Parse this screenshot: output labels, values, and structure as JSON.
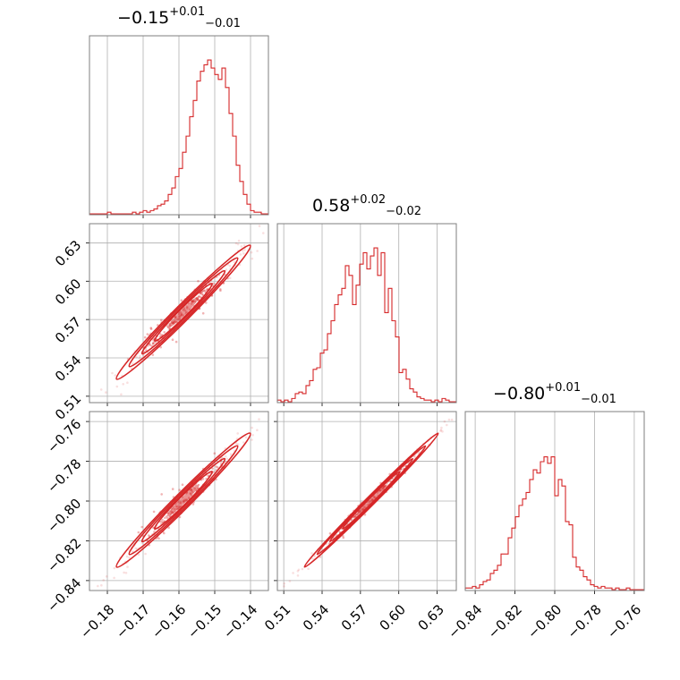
{
  "chart_data": {
    "type": "corner",
    "color": "#d62728",
    "grid": true,
    "parameters": [
      {
        "title_value": "−0.15",
        "title_plus": "+0.01",
        "title_minus": "−0.01",
        "range": [
          -0.185,
          -0.135
        ],
        "ticks": [
          -0.18,
          -0.17,
          -0.16,
          -0.15,
          -0.14
        ],
        "tick_labels": [
          "−0.18",
          "−0.17",
          "−0.16",
          "−0.15",
          "−0.14"
        ],
        "hist": [
          0,
          0,
          0,
          0,
          0,
          0.01,
          0,
          0,
          0,
          0,
          0,
          0,
          0.01,
          0,
          0.01,
          0.02,
          0.01,
          0.02,
          0.03,
          0.05,
          0.06,
          0.08,
          0.12,
          0.16,
          0.23,
          0.28,
          0.38,
          0.48,
          0.6,
          0.7,
          0.82,
          0.88,
          0.92,
          0.95,
          0.9,
          0.86,
          0.83,
          0.9,
          0.78,
          0.62,
          0.48,
          0.3,
          0.2,
          0.12,
          0.06,
          0.02,
          0.01,
          0.01,
          0,
          0
        ]
      },
      {
        "title_value": "0.58",
        "title_plus": "+0.02",
        "title_minus": "−0.02",
        "range": [
          0.505,
          0.645
        ],
        "ticks": [
          0.51,
          0.54,
          0.57,
          0.6,
          0.63
        ],
        "tick_labels": [
          "0.51",
          "0.54",
          "0.57",
          "0.60",
          "0.63"
        ],
        "hist": [
          0.01,
          0,
          0.01,
          0,
          0.02,
          0.05,
          0.06,
          0.05,
          0.1,
          0.13,
          0.2,
          0.21,
          0.3,
          0.32,
          0.42,
          0.5,
          0.6,
          0.66,
          0.7,
          0.84,
          0.78,
          0.6,
          0.72,
          0.85,
          0.92,
          0.82,
          0.9,
          0.95,
          0.78,
          0.92,
          0.55,
          0.7,
          0.5,
          0.4,
          0.18,
          0.2,
          0.14,
          0.08,
          0.06,
          0.03,
          0.02,
          0.01,
          0.01,
          0,
          0.01,
          0,
          0.02,
          0.01,
          0,
          0
        ]
      },
      {
        "title_value": "−0.80",
        "title_plus": "+0.01",
        "title_minus": "−0.01",
        "range": [
          -0.845,
          -0.755
        ],
        "ticks": [
          -0.84,
          -0.82,
          -0.8,
          -0.78,
          -0.76
        ],
        "tick_labels": [
          "−0.84",
          "−0.82",
          "−0.80",
          "−0.78",
          "−0.76"
        ],
        "hist": [
          0.01,
          0.01,
          0.02,
          0.01,
          0.03,
          0.05,
          0.06,
          0.1,
          0.12,
          0.15,
          0.22,
          0.22,
          0.32,
          0.38,
          0.45,
          0.52,
          0.56,
          0.6,
          0.68,
          0.74,
          0.72,
          0.79,
          0.82,
          0.78,
          0.82,
          0.58,
          0.68,
          0.64,
          0.42,
          0.4,
          0.2,
          0.14,
          0.12,
          0.08,
          0.06,
          0.03,
          0.02,
          0.01,
          0.02,
          0.01,
          0.01,
          0,
          0.01,
          0,
          0,
          0.01,
          0,
          0,
          0,
          0
        ]
      }
    ],
    "correlations": [
      {
        "x": 0,
        "y": 1,
        "rho": 0.98
      },
      {
        "x": 0,
        "y": 2,
        "rho": 0.98
      },
      {
        "x": 1,
        "y": 2,
        "rho": 0.995
      }
    ]
  }
}
